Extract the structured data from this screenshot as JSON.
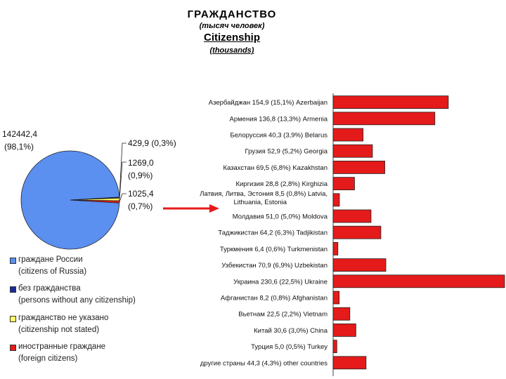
{
  "titles": {
    "ru": "ГРАЖДАНСТВО",
    "ru_sub": "(тысяч человек)",
    "en": "Citizenship",
    "en_sub": "(thousands)"
  },
  "colors": {
    "russia": "#5b8ff0",
    "stateless": "#1a2a9a",
    "not_stated": "#ffff66",
    "foreign": "#e51a1a",
    "arrow": "#e51a1a"
  },
  "chart_data": [
    {
      "type": "pie",
      "slices": [
        {
          "key": "russia",
          "value": 142442.4,
          "percent": 98.1,
          "label_value": "142442,4",
          "label_pct": "(98,1%)"
        },
        {
          "key": "stateless",
          "value": 429.9,
          "percent": 0.3,
          "label_value": "429,9",
          "label_pct": "(0,3%)"
        },
        {
          "key": "not_stated",
          "value": 1269.0,
          "percent": 0.9,
          "label_value": "1269,0",
          "label_pct": "(0,9%)"
        },
        {
          "key": "foreign",
          "value": 1025.4,
          "percent": 0.7,
          "label_value": "1025,4",
          "label_pct": "(0,7%)"
        }
      ],
      "legend": [
        {
          "key": "russia",
          "ru": "граждане России",
          "en": "(citizens of Russia)"
        },
        {
          "key": "stateless",
          "ru": "без гражданства",
          "en": "(persons without any citizenship)"
        },
        {
          "key": "not_stated",
          "ru": "гражданство не указано",
          "en": "(citizenship not stated)"
        },
        {
          "key": "foreign",
          "ru": "иностранные граждане",
          "en": "(foreign citizens)"
        }
      ]
    },
    {
      "type": "bar",
      "orientation": "horizontal",
      "categories": [
        "Азербайджан 154,9 (15,1%) Azerbaijan",
        "Армения 136,8 (13,3%) Armenia",
        "Белоруссия 40,3 (3,9%) Belarus",
        "Грузия 52,9 (5,2%) Georgia",
        "Казахстан 69,5 (6,8%) Kazakhstan",
        "Киргизия 28,8 (2,8%) Kirghizia",
        "Латвия, Литва, Эстония 8,5 (0,8%) Latvia, Lithuania, Estonia",
        "Молдавия 51,0 (5,0%) Moldova",
        "Таджикистан 64,2 (6,3%) Tadjikistan",
        "Туркмения 6,4 (0,6%) Turkmenistan",
        "Узбекистан 70,9 (6,9%) Uzbekistan",
        "Украина 230,6 (22,5%) Ukraine",
        "Афганистан 8,2 (0,8%) Afghanistan",
        "Вьетнам 22,5 (2,2%) Vietnam",
        "Китай 30,6 (3,0%) China",
        "Турция 5,0 (0,5%) Turkey",
        "другие страны 44,3 (4,3%) other countries"
      ],
      "values": [
        154.9,
        136.8,
        40.3,
        52.9,
        69.5,
        28.8,
        8.5,
        51.0,
        64.2,
        6.4,
        70.9,
        230.6,
        8.2,
        22.5,
        30.6,
        5.0,
        44.3
      ],
      "xlim": [
        0,
        230.6
      ]
    }
  ]
}
